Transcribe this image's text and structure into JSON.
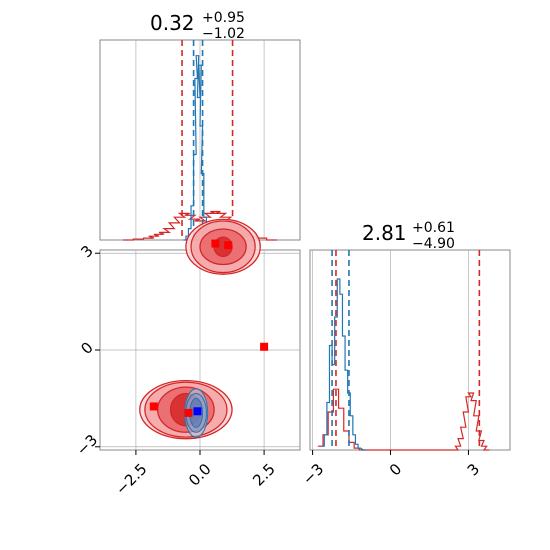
{
  "chart_data": {
    "type": "corner",
    "parameters": [
      {
        "title_value": "0.32",
        "title_plus": "+0.95",
        "title_minus": "−1.02"
      },
      {
        "title_value": "2.81",
        "title_plus": "+0.61",
        "title_minus": "−4.90"
      }
    ],
    "scatter_panel": {
      "xlim": [
        -3.9,
        3.9
      ],
      "ylim": [
        -3.1,
        3.1
      ],
      "xticks": [
        -2.5,
        0.0,
        2.5
      ],
      "xtick_labels": [
        "−2.5",
        "0.0",
        "2.5"
      ],
      "yticks": [
        -3,
        0,
        3
      ],
      "ytick_labels": [
        "−3",
        "0",
        "3"
      ],
      "grid": true,
      "red_markers": [
        {
          "x": 0.6,
          "y": 3.3
        },
        {
          "x": 1.1,
          "y": 3.25
        },
        {
          "x": -1.8,
          "y": -1.75
        },
        {
          "x": -0.45,
          "y": -1.95
        },
        {
          "x": 2.5,
          "y": 0.1
        }
      ],
      "blue_markers": [
        {
          "x": -0.1,
          "y": -1.9
        }
      ],
      "red_contours": [
        {
          "cx": 0.9,
          "cy": 3.2,
          "levels": [
            [
              0.35,
              0.3
            ],
            [
              0.9,
              0.55
            ],
            [
              1.25,
              0.8
            ],
            [
              1.45,
              0.85
            ]
          ]
        },
        {
          "cx": -0.55,
          "cy": -1.85,
          "levels": [
            [
              0.6,
              0.5
            ],
            [
              1.1,
              0.7
            ],
            [
              1.6,
              0.85
            ],
            [
              1.8,
              0.9
            ]
          ]
        }
      ],
      "blue_contours": [
        {
          "cx": -0.15,
          "cy": -1.95,
          "levels": [
            [
              0.25,
              0.45
            ],
            [
              0.4,
              0.6
            ],
            [
              0.45,
              0.75
            ]
          ]
        }
      ]
    },
    "hist_x": {
      "xlim": [
        -3.9,
        3.9
      ],
      "quantiles_red": [
        -0.7,
        1.27
      ],
      "quantiles_blue": [
        -0.25,
        0.1
      ],
      "blue_hist": [
        {
          "x": -0.6,
          "h": 0.0
        },
        {
          "x": -0.5,
          "h": 0.02
        },
        {
          "x": -0.4,
          "h": 0.06
        },
        {
          "x": -0.3,
          "h": 0.18
        },
        {
          "x": -0.2,
          "h": 0.45
        },
        {
          "x": -0.15,
          "h": 0.85
        },
        {
          "x": -0.1,
          "h": 0.97
        },
        {
          "x": -0.05,
          "h": 0.75
        },
        {
          "x": 0.0,
          "h": 0.92
        },
        {
          "x": 0.05,
          "h": 0.6
        },
        {
          "x": 0.1,
          "h": 0.35
        },
        {
          "x": 0.2,
          "h": 0.12
        },
        {
          "x": 0.3,
          "h": 0.05
        },
        {
          "x": 0.4,
          "h": 0.02
        },
        {
          "x": 0.5,
          "h": 0.0
        }
      ],
      "red_hist": [
        {
          "x": -2.8,
          "h": 0.0
        },
        {
          "x": -2.4,
          "h": 0.005
        },
        {
          "x": -2.0,
          "h": 0.01
        },
        {
          "x": -1.8,
          "h": 0.02
        },
        {
          "x": -1.6,
          "h": 0.03
        },
        {
          "x": -1.4,
          "h": 0.04
        },
        {
          "x": -1.2,
          "h": 0.06
        },
        {
          "x": -1.0,
          "h": 0.09
        },
        {
          "x": -0.8,
          "h": 0.12
        },
        {
          "x": -0.6,
          "h": 0.14
        },
        {
          "x": -0.4,
          "h": 0.13
        },
        {
          "x": -0.2,
          "h": 0.11
        },
        {
          "x": 0.0,
          "h": 0.1
        },
        {
          "x": 0.2,
          "h": 0.12
        },
        {
          "x": 0.4,
          "h": 0.14
        },
        {
          "x": 0.6,
          "h": 0.15
        },
        {
          "x": 0.8,
          "h": 0.14
        },
        {
          "x": 1.0,
          "h": 0.12
        },
        {
          "x": 1.2,
          "h": 0.1
        },
        {
          "x": 1.4,
          "h": 0.07
        },
        {
          "x": 1.6,
          "h": 0.05
        },
        {
          "x": 1.8,
          "h": 0.03
        },
        {
          "x": 2.0,
          "h": 0.02
        },
        {
          "x": 2.4,
          "h": 0.01
        },
        {
          "x": 2.8,
          "h": 0.0
        }
      ]
    },
    "hist_y": {
      "xlim": [
        -3.1,
        4.6
      ],
      "xticks": [
        -3,
        0,
        3
      ],
      "xtick_labels": [
        "−3",
        "0",
        "3"
      ],
      "quantiles_red": [
        -2.1,
        3.42
      ],
      "quantiles_blue": [
        -2.25,
        -1.6
      ],
      "blue_hist": [
        {
          "x": -2.6,
          "h": 0.02
        },
        {
          "x": -2.5,
          "h": 0.08
        },
        {
          "x": -2.4,
          "h": 0.25
        },
        {
          "x": -2.3,
          "h": 0.55
        },
        {
          "x": -2.2,
          "h": 0.45
        },
        {
          "x": -2.1,
          "h": 0.7
        },
        {
          "x": -2.0,
          "h": 0.9
        },
        {
          "x": -1.9,
          "h": 0.82
        },
        {
          "x": -1.8,
          "h": 0.6
        },
        {
          "x": -1.7,
          "h": 0.42
        },
        {
          "x": -1.6,
          "h": 0.3
        },
        {
          "x": -1.5,
          "h": 0.18
        },
        {
          "x": -1.4,
          "h": 0.08
        },
        {
          "x": -1.3,
          "h": 0.03
        },
        {
          "x": -1.2,
          "h": 0.01
        },
        {
          "x": -1.0,
          "h": 0.0
        }
      ],
      "red_hist": [
        {
          "x": -2.7,
          "h": 0.02
        },
        {
          "x": -2.5,
          "h": 0.08
        },
        {
          "x": -2.3,
          "h": 0.2
        },
        {
          "x": -2.1,
          "h": 0.32
        },
        {
          "x": -1.9,
          "h": 0.22
        },
        {
          "x": -1.7,
          "h": 0.1
        },
        {
          "x": -1.5,
          "h": 0.04
        },
        {
          "x": -1.3,
          "h": 0.01
        },
        {
          "x": -1.1,
          "h": 0.0
        },
        {
          "x": 2.5,
          "h": 0.0
        },
        {
          "x": 2.6,
          "h": 0.02
        },
        {
          "x": 2.7,
          "h": 0.06
        },
        {
          "x": 2.8,
          "h": 0.12
        },
        {
          "x": 2.9,
          "h": 0.2
        },
        {
          "x": 3.0,
          "h": 0.28
        },
        {
          "x": 3.1,
          "h": 0.3
        },
        {
          "x": 3.2,
          "h": 0.26
        },
        {
          "x": 3.3,
          "h": 0.18
        },
        {
          "x": 3.4,
          "h": 0.1
        },
        {
          "x": 3.5,
          "h": 0.05
        },
        {
          "x": 3.6,
          "h": 0.02
        },
        {
          "x": 3.7,
          "h": 0.0
        }
      ]
    },
    "colors": {
      "red": "#d62728",
      "blue": "#1f77b4",
      "marker_red": "#ff0000",
      "marker_blue": "#0000ff",
      "grid": "#b0b0b0"
    }
  }
}
